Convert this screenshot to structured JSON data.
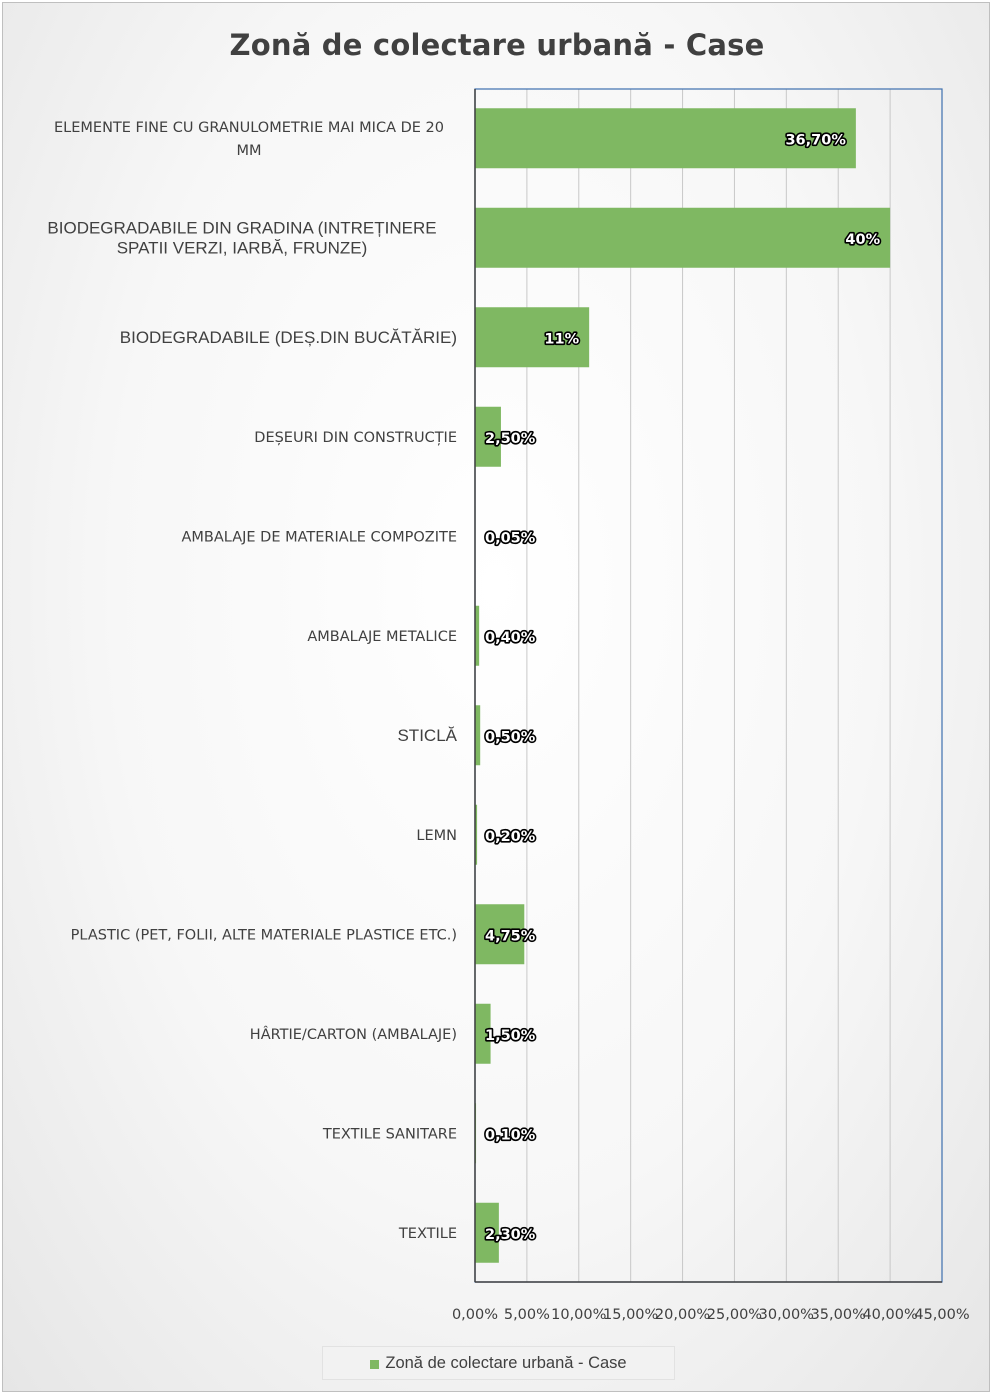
{
  "chart_data": {
    "type": "bar",
    "orientation": "horizontal",
    "title": "Zonă de colectare urbană - Case",
    "categories": [
      "ELEMENTE FINE CU GRANULOMETRIE MAI MICA DE 20 MM",
      "BIODEGRADABILE DIN GRADINA (INTREȚINERE SPATII VERZI, IARBĂ, FRUNZE)",
      "BIODEGRADABILE (DEȘ.DIN BUCĂTĂRIE)",
      "DEȘEURI DIN CONSTRUCȚIE",
      "AMBALAJE DE MATERIALE COMPOZITE",
      "AMBALAJE METALICE",
      "STICLĂ",
      "LEMN",
      "PLASTIC (PET, FOLII, ALTE MATERIALE PLASTICE ETC.)",
      "HÂRTIE/CARTON (AMBALAJE)",
      "TEXTILE SANITARE",
      "TEXTILE"
    ],
    "category_lines": [
      [
        "ELEMENTE FINE CU GRANULOMETRIE MAI MICA DE 20",
        "MM"
      ],
      [
        "BIODEGRADABILE DIN GRADINA (INTREȚINERE",
        "SPATII VERZI, IARBĂ, FRUNZE)"
      ],
      [
        "BIODEGRADABILE (DEȘ.DIN BUCĂTĂRIE)"
      ],
      [
        "DEȘEURI DIN CONSTRUCȚIE"
      ],
      [
        "AMBALAJE DE MATERIALE COMPOZITE"
      ],
      [
        "AMBALAJE METALICE"
      ],
      [
        "STICLĂ"
      ],
      [
        "LEMN"
      ],
      [
        "PLASTIC (PET, FOLII, ALTE MATERIALE PLASTICE ETC.)"
      ],
      [
        "HÂRTIE/CARTON (AMBALAJE)"
      ],
      [
        "TEXTILE SANITARE"
      ],
      [
        "TEXTILE"
      ]
    ],
    "series": [
      {
        "name": "Zonă de colectare urbană - Case",
        "values": [
          36.7,
          40,
          11,
          2.5,
          0.05,
          0.4,
          0.5,
          0.2,
          4.75,
          1.5,
          0.1,
          2.3
        ],
        "data_labels": [
          "36,70%",
          "40%",
          "11%",
          "2,50%",
          "0,05%",
          "0,40%",
          "0,50%",
          "0,20%",
          "4,75%",
          "1,50%",
          "0,10%",
          "2,30%"
        ]
      }
    ],
    "xlim": [
      0,
      45
    ],
    "x_ticks": [
      0,
      5,
      10,
      15,
      20,
      25,
      30,
      35,
      40,
      45
    ],
    "x_tick_labels": [
      "0,00%",
      "5,00%",
      "10,00%",
      "15,00%",
      "20,00%",
      "25,00%",
      "30,00%",
      "35,00%",
      "40,00%",
      "45,00%"
    ],
    "grid": true,
    "legend_position": "bottom",
    "colors": {
      "bar": "#7fb862",
      "grid": "#c8c8c8",
      "plot_border": "#3d6fae",
      "axis": "#404040"
    }
  }
}
